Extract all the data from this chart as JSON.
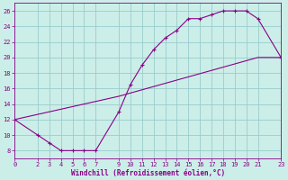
{
  "xlabel": "Windchill (Refroidissement éolien,°C)",
  "bg_color": "#cceee8",
  "line_color": "#880088",
  "grid_color": "#99cccc",
  "xlim": [
    0,
    23
  ],
  "ylim": [
    7,
    27
  ],
  "xticks": [
    0,
    2,
    3,
    4,
    5,
    6,
    7,
    9,
    10,
    11,
    12,
    13,
    14,
    15,
    16,
    17,
    18,
    19,
    20,
    21,
    23
  ],
  "yticks": [
    8,
    10,
    12,
    14,
    16,
    18,
    20,
    22,
    24,
    26
  ],
  "curve1_x": [
    0,
    2,
    3,
    4,
    5,
    6,
    7,
    9,
    10,
    11,
    12,
    13,
    14,
    15,
    16,
    17,
    18,
    19,
    20,
    21,
    23
  ],
  "curve1_y": [
    12,
    10,
    9,
    8,
    8,
    8,
    8,
    13,
    16.5,
    19,
    21,
    22.5,
    23.5,
    25,
    25,
    25.5,
    26,
    26,
    26,
    25,
    20
  ],
  "curve2_x": [
    0,
    9,
    21,
    23
  ],
  "curve2_y": [
    12,
    15,
    20,
    20
  ],
  "xlabel_fontsize": 5.5,
  "tick_fontsize": 5.0
}
